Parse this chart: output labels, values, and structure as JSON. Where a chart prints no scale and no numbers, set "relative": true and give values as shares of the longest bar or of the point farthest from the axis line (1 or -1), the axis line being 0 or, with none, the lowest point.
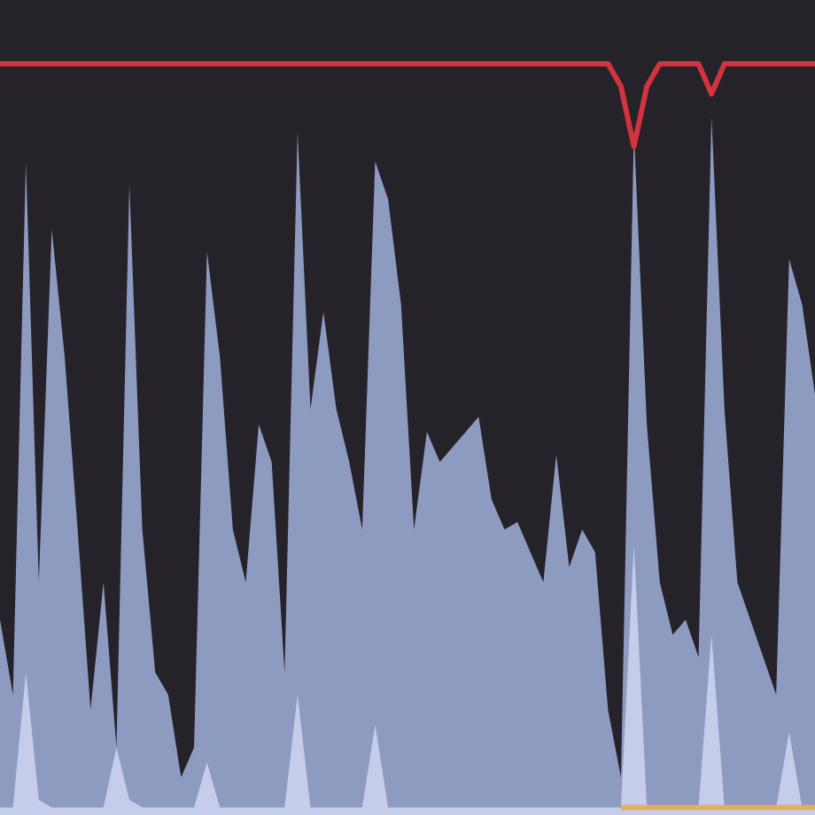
{
  "chart_data": {
    "type": "area",
    "relative": true,
    "categories": [
      null,
      null,
      null,
      null,
      null,
      null,
      null,
      null,
      null,
      null,
      null,
      null,
      null,
      null,
      null,
      null,
      null,
      null,
      null,
      null,
      null,
      null,
      null,
      null,
      null,
      null,
      null,
      null,
      null,
      null,
      null,
      null,
      null,
      null,
      null,
      null,
      null,
      null,
      null,
      null,
      null,
      null,
      null,
      null,
      null,
      null,
      null,
      null,
      null,
      null,
      null,
      null,
      null,
      null,
      null,
      null,
      null,
      null,
      null,
      null,
      null,
      null,
      null,
      null
    ],
    "series": [
      {
        "color": "#8e9bc1",
        "values": [
          0.26,
          0.16,
          0.87,
          0.31,
          0.78,
          0.61,
          0.38,
          0.14,
          0.31,
          0.09,
          0.84,
          0.38,
          0.19,
          0.16,
          0.05,
          0.09,
          0.75,
          0.61,
          0.38,
          0.31,
          0.52,
          0.47,
          0.19,
          0.91,
          0.54,
          0.67,
          0.54,
          0.47,
          0.38,
          0.87,
          0.82,
          0.68,
          0.38,
          0.51,
          0.47,
          0.49,
          0.51,
          0.53,
          0.42,
          0.38,
          0.39,
          0.35,
          0.31,
          0.48,
          0.33,
          0.38,
          0.35,
          0.14,
          0.05,
          0.91,
          0.52,
          0.31,
          0.24,
          0.26,
          0.21,
          0.93,
          0.54,
          0.31,
          0.26,
          0.21,
          0.16,
          0.74,
          0.68,
          0.56
        ]
      },
      {
        "color": "#c5cdea",
        "values": [
          0.01,
          0.01,
          0.19,
          0.02,
          0.01,
          0.01,
          0.01,
          0.01,
          0.01,
          0.09,
          0.02,
          0.01,
          0.01,
          0.01,
          0.01,
          0.01,
          0.07,
          0.01,
          0.01,
          0.01,
          0.01,
          0.01,
          0.01,
          0.16,
          0.01,
          0.01,
          0.01,
          0.01,
          0.01,
          0.12,
          0.01,
          0.01,
          0.01,
          0.01,
          0.01,
          0.01,
          0.01,
          0.01,
          0.01,
          0.01,
          0.01,
          0.01,
          0.01,
          0.01,
          0.01,
          0.01,
          0.01,
          0.01,
          0.01,
          0.36,
          0.01,
          0.01,
          0.01,
          0.01,
          0.01,
          0.24,
          0.01,
          0.01,
          0.01,
          0.01,
          0.01,
          0.11,
          0.01,
          0.01
        ]
      },
      {
        "type": "line",
        "color": "#d0343f",
        "values": [
          1,
          1,
          1,
          1,
          1,
          1,
          1,
          1,
          1,
          1,
          1,
          1,
          1,
          1,
          1,
          1,
          1,
          1,
          1,
          1,
          1,
          1,
          1,
          1,
          1,
          1,
          1,
          1,
          1,
          1,
          1,
          1,
          1,
          1,
          1,
          1,
          1,
          1,
          1,
          1,
          1,
          1,
          1,
          1,
          1,
          1,
          1,
          1,
          0.97,
          0.89,
          0.97,
          1,
          1,
          1,
          1,
          0.96,
          1,
          1,
          1,
          1,
          1,
          1,
          1,
          1
        ]
      },
      {
        "type": "line",
        "color": "#e0b060",
        "values": [
          null,
          null,
          null,
          null,
          null,
          null,
          null,
          null,
          null,
          null,
          null,
          null,
          null,
          null,
          null,
          null,
          null,
          null,
          null,
          null,
          null,
          null,
          null,
          null,
          null,
          null,
          null,
          null,
          null,
          null,
          null,
          null,
          null,
          null,
          null,
          null,
          null,
          null,
          null,
          null,
          null,
          null,
          null,
          null,
          null,
          null,
          null,
          null,
          0.01,
          0.01,
          0.01,
          0.01,
          0.01,
          0.01,
          0.01,
          0.01,
          0.01,
          0.01,
          0.01,
          0.01,
          0.01,
          0.01,
          0.01,
          0.01
        ]
      }
    ]
  }
}
